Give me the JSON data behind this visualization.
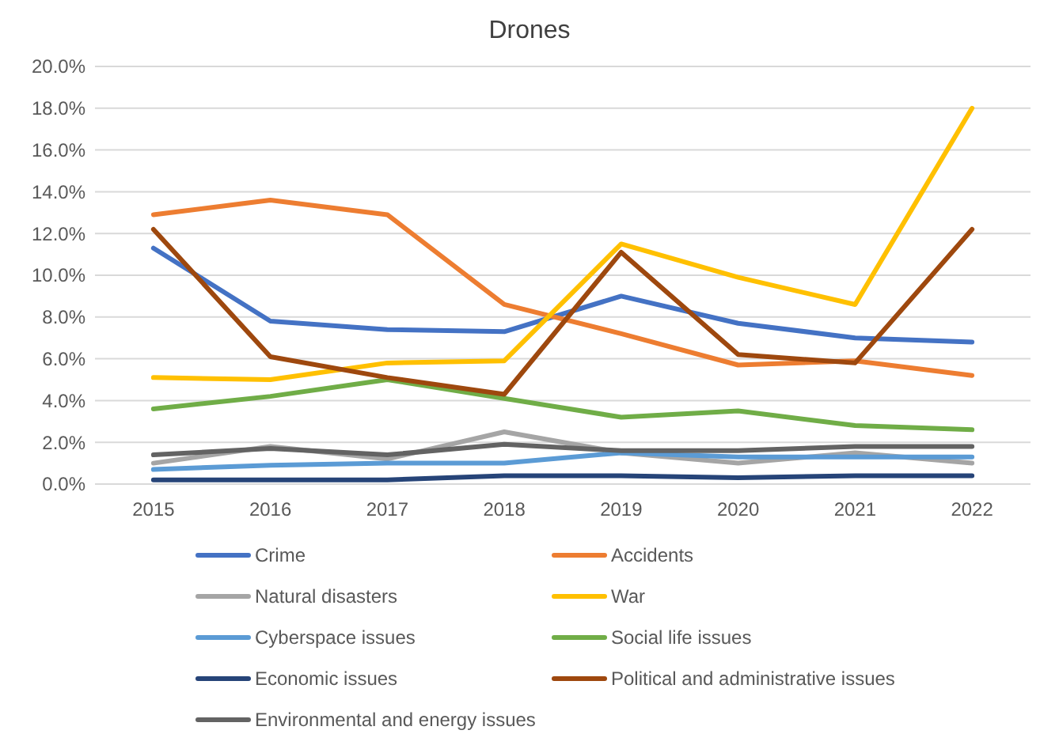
{
  "chart_data": {
    "type": "line",
    "title": "Drones",
    "categories": [
      "2015",
      "2016",
      "2017",
      "2018",
      "2019",
      "2020",
      "2021",
      "2022"
    ],
    "ylim": [
      0,
      20
    ],
    "yticks": [
      {
        "value": 0,
        "label": "0.0%"
      },
      {
        "value": 2,
        "label": "2.0%"
      },
      {
        "value": 4,
        "label": "4.0%"
      },
      {
        "value": 6,
        "label": "6.0%"
      },
      {
        "value": 8,
        "label": "8.0%"
      },
      {
        "value": 10,
        "label": "10.0%"
      },
      {
        "value": 12,
        "label": "12.0%"
      },
      {
        "value": 14,
        "label": "14.0%"
      },
      {
        "value": 16,
        "label": "16.0%"
      },
      {
        "value": 18,
        "label": "18.0%"
      },
      {
        "value": 20,
        "label": "20.0%"
      }
    ],
    "grid": "y",
    "legend": "bottom",
    "marker": "none",
    "line_style": "solid",
    "series": [
      {
        "name": "Crime",
        "color": "#4472c4",
        "values": [
          11.3,
          7.8,
          7.4,
          7.3,
          9.0,
          7.7,
          7.0,
          6.8
        ]
      },
      {
        "name": "Accidents",
        "color": "#ed7d31",
        "values": [
          12.9,
          13.6,
          12.9,
          8.6,
          7.2,
          5.7,
          5.9,
          5.2
        ]
      },
      {
        "name": "Natural disasters",
        "color": "#a5a5a5",
        "values": [
          1.0,
          1.8,
          1.2,
          2.5,
          1.5,
          1.0,
          1.5,
          1.0
        ]
      },
      {
        "name": "War",
        "color": "#ffc000",
        "values": [
          5.1,
          5.0,
          5.8,
          5.9,
          11.5,
          9.9,
          8.6,
          18.0
        ]
      },
      {
        "name": "Cyberspace issues",
        "color": "#5b9bd5",
        "values": [
          0.7,
          0.9,
          1.0,
          1.0,
          1.5,
          1.3,
          1.3,
          1.3
        ]
      },
      {
        "name": "Social life issues",
        "color": "#70ad47",
        "values": [
          3.6,
          4.2,
          5.0,
          4.1,
          3.2,
          3.5,
          2.8,
          2.6
        ]
      },
      {
        "name": "Economic issues",
        "color": "#264478",
        "values": [
          0.2,
          0.2,
          0.2,
          0.4,
          0.4,
          0.3,
          0.4,
          0.4
        ]
      },
      {
        "name": "Political and administrative issues",
        "color": "#9e480e",
        "values": [
          12.2,
          6.1,
          5.1,
          4.3,
          11.1,
          6.2,
          5.8,
          12.2
        ]
      },
      {
        "name": "Environmental and energy issues",
        "color": "#636363",
        "values": [
          1.4,
          1.7,
          1.4,
          1.9,
          1.6,
          1.6,
          1.8,
          1.8
        ]
      }
    ]
  }
}
